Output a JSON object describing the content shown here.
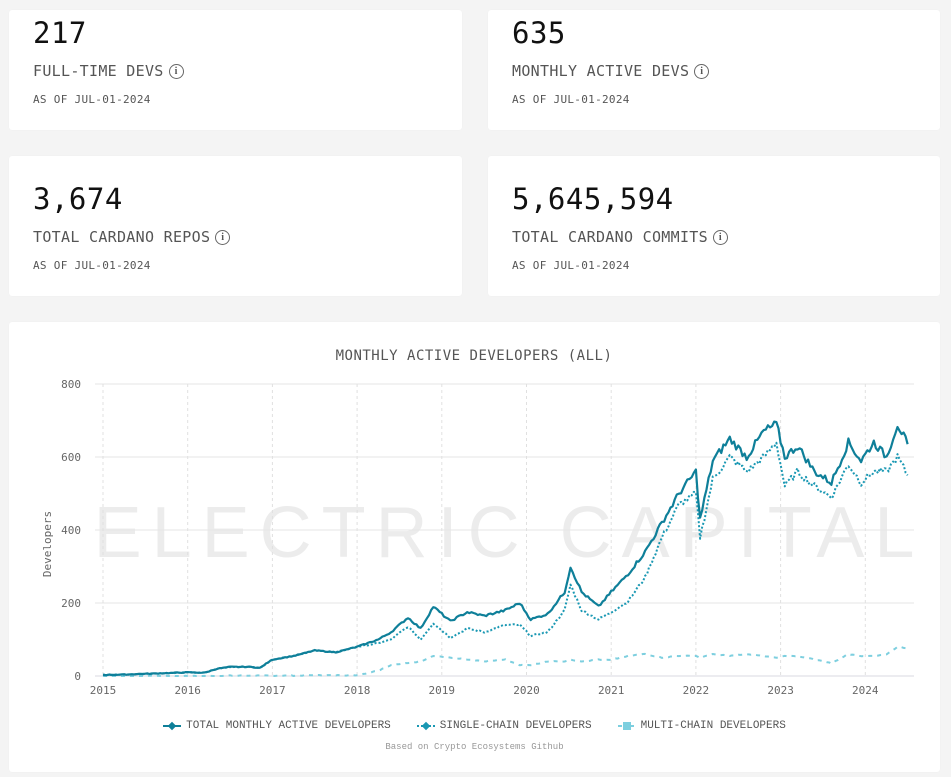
{
  "stats": [
    {
      "value": "217",
      "label": "FULL-TIME DEVS",
      "date": "AS OF JUL-01-2024"
    },
    {
      "value": "635",
      "label": "MONTHLY ACTIVE DEVS",
      "date": "AS OF JUL-01-2024"
    },
    {
      "value": "3,674",
      "label": "TOTAL CARDANO REPOS",
      "date": "AS OF JUL-01-2024"
    },
    {
      "value": "5,645,594",
      "label": "TOTAL CARDANO COMMITS",
      "date": "AS OF JUL-01-2024"
    }
  ],
  "info_icon_glyph": "i",
  "watermark": "ELECTRIC CAPITAL",
  "footnote": "Based on Crypto Ecosystems Github",
  "chart_data": {
    "type": "line",
    "title": "MONTHLY ACTIVE DEVELOPERS (ALL)",
    "xlabel": "",
    "ylabel": "Developers",
    "xlim": [
      2015,
      2024.55
    ],
    "ylim": [
      0,
      800
    ],
    "x_ticks": [
      2015,
      2016,
      2017,
      2018,
      2019,
      2020,
      2021,
      2022,
      2023,
      2024
    ],
    "x_tick_labels": [
      "2015",
      "2016",
      "2017",
      "2018",
      "2019",
      "2020",
      "2021",
      "2022",
      "2023",
      "2024"
    ],
    "y_ticks": [
      0,
      200,
      400,
      600,
      800
    ],
    "y_tick_labels": [
      "0",
      "200",
      "400",
      "600",
      "800"
    ],
    "grid": true,
    "legend_position": "bottom",
    "x": [
      2015.0,
      2015.25,
      2015.5,
      2015.75,
      2016.0,
      2016.2,
      2016.35,
      2016.5,
      2016.75,
      2016.85,
      2017.0,
      2017.25,
      2017.5,
      2017.75,
      2018.0,
      2018.25,
      2018.4,
      2018.6,
      2018.75,
      2018.9,
      2019.1,
      2019.3,
      2019.5,
      2019.75,
      2019.92,
      2020.05,
      2020.25,
      2020.45,
      2020.52,
      2020.65,
      2020.85,
      2021.0,
      2021.2,
      2021.4,
      2021.6,
      2021.8,
      2022.0,
      2022.05,
      2022.2,
      2022.4,
      2022.6,
      2022.8,
      2022.95,
      2023.05,
      2023.2,
      2023.4,
      2023.6,
      2023.8,
      2023.95,
      2024.1,
      2024.25,
      2024.38,
      2024.5
    ],
    "series": [
      {
        "name": "TOTAL MONTHLY ACTIVE DEVELOPERS",
        "color": "#0e7f99",
        "style": "solid",
        "values": [
          3,
          4,
          6,
          8,
          10,
          9,
          20,
          25,
          25,
          22,
          45,
          55,
          70,
          65,
          80,
          100,
          120,
          160,
          130,
          190,
          150,
          175,
          165,
          180,
          200,
          155,
          170,
          230,
          300,
          230,
          190,
          230,
          280,
          340,
          420,
          500,
          560,
          430,
          590,
          650,
          600,
          670,
          690,
          600,
          630,
          560,
          530,
          640,
          590,
          640,
          600,
          690,
          635
        ]
      },
      {
        "name": "SINGLE-CHAIN DEVELOPERS",
        "color": "#1a98b3",
        "style": "dotted",
        "values": [
          3,
          4,
          6,
          8,
          10,
          9,
          20,
          25,
          25,
          22,
          45,
          55,
          70,
          65,
          80,
          90,
          100,
          135,
          100,
          145,
          105,
          130,
          120,
          140,
          140,
          110,
          120,
          180,
          250,
          180,
          155,
          175,
          205,
          270,
          380,
          470,
          500,
          380,
          540,
          600,
          560,
          600,
          640,
          520,
          560,
          520,
          490,
          580,
          530,
          560,
          560,
          600,
          550
        ]
      },
      {
        "name": "MULTI-CHAIN DEVELOPERS",
        "color": "#7dcfdf",
        "style": "dashed",
        "values": [
          0,
          0,
          0,
          0,
          0,
          0,
          0,
          1,
          1,
          1,
          1,
          1,
          2,
          2,
          2,
          15,
          30,
          35,
          40,
          55,
          50,
          45,
          40,
          45,
          30,
          30,
          40,
          40,
          45,
          40,
          45,
          45,
          55,
          60,
          50,
          55,
          55,
          50,
          60,
          55,
          60,
          55,
          50,
          55,
          55,
          45,
          35,
          60,
          55,
          55,
          60,
          80,
          75
        ]
      }
    ]
  }
}
